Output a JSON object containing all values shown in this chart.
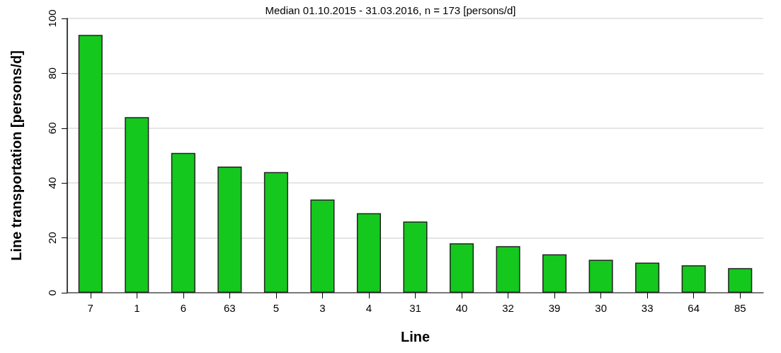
{
  "chart_data": {
    "type": "bar",
    "title": "Median 01.10.2015 - 31.03.2016, n = 173 [persons/d]",
    "xlabel": "Line",
    "ylabel": "Line transportation [persons/d]",
    "categories": [
      "7",
      "1",
      "6",
      "63",
      "5",
      "3",
      "4",
      "31",
      "40",
      "32",
      "39",
      "30",
      "33",
      "64",
      "85"
    ],
    "values": [
      94,
      64,
      51,
      46,
      44,
      34,
      29,
      26,
      18,
      17,
      14,
      12,
      11,
      10,
      9
    ],
    "color": "#14c81e",
    "ylim": [
      0,
      100
    ],
    "yticks": [
      0,
      20,
      40,
      60,
      80,
      100
    ],
    "grid": "y"
  }
}
